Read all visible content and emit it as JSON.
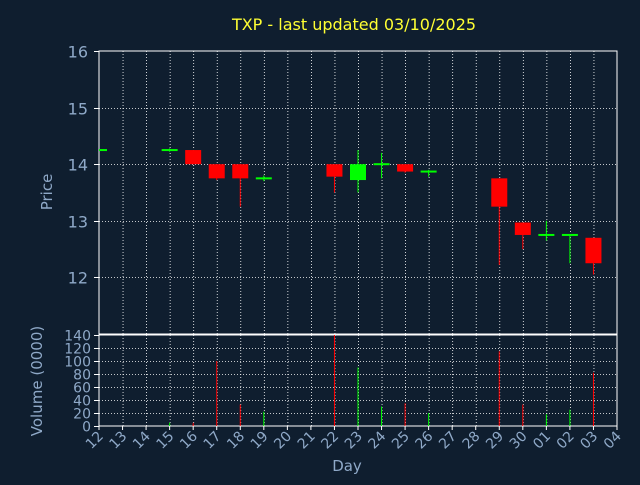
{
  "chart_data": {
    "type": "candlestick",
    "title": "TXP - last updated 03/10/2025",
    "colors": {
      "background": "#0f1e2f",
      "plot_background": "#0f1e2f",
      "frame": "#ffffff",
      "grid": "#ffffff",
      "title": "#ffff33",
      "axis_text": "#8fa9c8",
      "up": "#00ff00",
      "down": "#ff0000"
    },
    "x_ticks": [
      "12",
      "13",
      "14",
      "15",
      "16",
      "17",
      "18",
      "19",
      "20",
      "21",
      "22",
      "23",
      "24",
      "25",
      "26",
      "27",
      "28",
      "29",
      "30",
      "01",
      "02",
      "03",
      "04"
    ],
    "xlabel": "Day",
    "grid": true,
    "price_panel": {
      "ylabel": "Price",
      "ylim": [
        11,
        16
      ],
      "yticks": [
        12,
        13,
        14,
        15,
        16
      ]
    },
    "volume_panel": {
      "ylabel": "Volume (0000)",
      "ylim": [
        0,
        140
      ],
      "yticks": [
        0,
        20,
        40,
        60,
        80,
        100,
        120,
        140
      ]
    },
    "candles": [
      {
        "day": "12",
        "open": 14.25,
        "high": 14.25,
        "low": 14.25,
        "close": 14.25,
        "volume": 0
      },
      {
        "day": "15",
        "open": 14.25,
        "high": 14.28,
        "low": 14.22,
        "close": 14.25,
        "volume": 5
      },
      {
        "day": "16",
        "open": 14.25,
        "high": 14.25,
        "low": 14.0,
        "close": 14.0,
        "volume": 5
      },
      {
        "day": "17",
        "open": 14.0,
        "high": 14.0,
        "low": 13.72,
        "close": 13.75,
        "volume": 100
      },
      {
        "day": "18",
        "open": 14.0,
        "high": 14.0,
        "low": 13.25,
        "close": 13.75,
        "volume": 33
      },
      {
        "day": "19",
        "open": 13.75,
        "high": 13.8,
        "low": 13.7,
        "close": 13.75,
        "volume": 22
      },
      {
        "day": "22",
        "open": 14.0,
        "high": 14.0,
        "low": 13.5,
        "close": 13.78,
        "volume": 140
      },
      {
        "day": "23",
        "open": 13.72,
        "high": 14.25,
        "low": 13.5,
        "close": 14.0,
        "volume": 90
      },
      {
        "day": "24",
        "open": 14.0,
        "high": 14.2,
        "low": 13.75,
        "close": 14.0,
        "volume": 30
      },
      {
        "day": "25",
        "open": 14.0,
        "high": 14.0,
        "low": 13.85,
        "close": 13.87,
        "volume": 35
      },
      {
        "day": "26",
        "open": 13.87,
        "high": 13.9,
        "low": 13.78,
        "close": 13.87,
        "volume": 20
      },
      {
        "day": "29",
        "open": 13.75,
        "high": 13.75,
        "low": 12.22,
        "close": 13.25,
        "volume": 115
      },
      {
        "day": "30",
        "open": 12.97,
        "high": 12.97,
        "low": 12.5,
        "close": 12.75,
        "volume": 33
      },
      {
        "day": "01",
        "open": 12.72,
        "high": 13.0,
        "low": 12.65,
        "close": 12.75,
        "volume": 18
      },
      {
        "day": "02",
        "open": 12.75,
        "high": 12.75,
        "low": 12.25,
        "close": 12.75,
        "volume": 25
      },
      {
        "day": "03",
        "open": 12.7,
        "high": 12.7,
        "low": 12.05,
        "close": 12.25,
        "volume": 82
      }
    ]
  }
}
